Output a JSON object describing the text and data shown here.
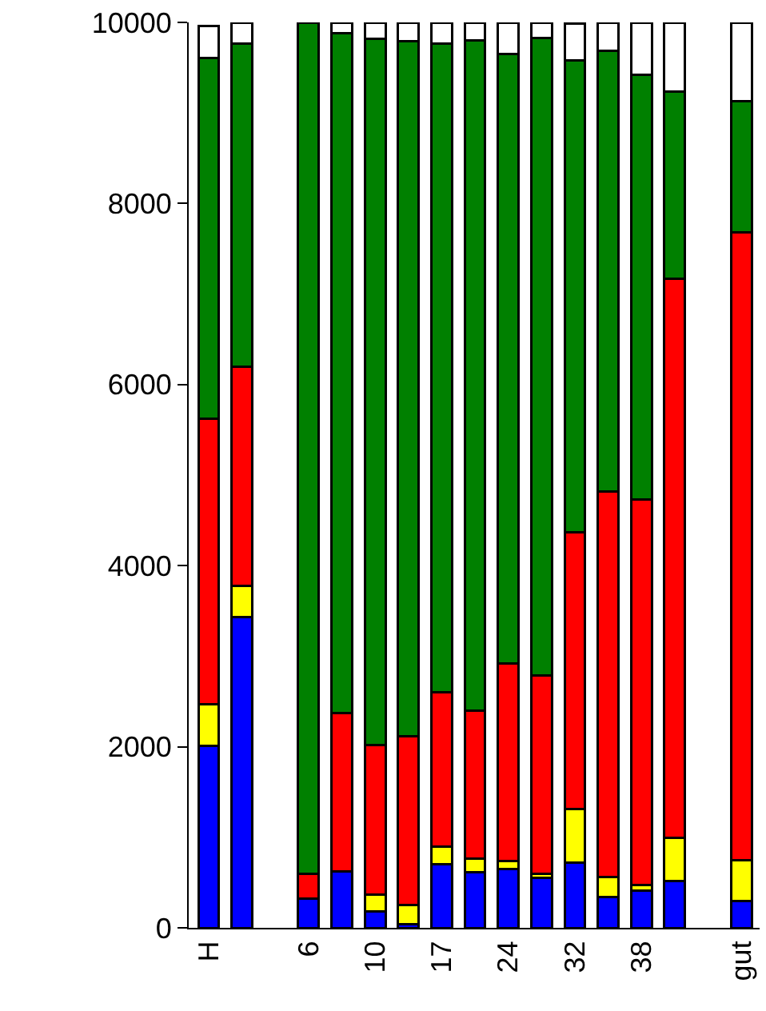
{
  "chart_data": {
    "type": "bar",
    "stacked": true,
    "categories": [
      "H",
      null,
      null,
      "6",
      null,
      "10",
      null,
      "17",
      null,
      "24",
      null,
      "32",
      null,
      "38",
      null,
      null,
      "gut"
    ],
    "series": [
      {
        "color": "#0000ff",
        "values": [
          2010,
          3430,
          null,
          320,
          620,
          180,
          40,
          700,
          610,
          650,
          550,
          720,
          340,
          410,
          520,
          null,
          300
        ]
      },
      {
        "color": "#ffff00",
        "values": [
          460,
          350,
          null,
          null,
          null,
          190,
          210,
          200,
          150,
          90,
          50,
          590,
          220,
          60,
          470,
          null,
          450
        ]
      },
      {
        "color": "#ff0000",
        "values": [
          3150,
          2420,
          null,
          280,
          1750,
          1650,
          1870,
          1700,
          1640,
          2180,
          2190,
          3060,
          4260,
          4260,
          6180,
          null,
          6930
        ]
      },
      {
        "color": "#008000",
        "values": [
          3990,
          3570,
          null,
          9400,
          7510,
          7800,
          7670,
          7170,
          7400,
          6730,
          7040,
          5210,
          4870,
          4690,
          2070,
          null,
          1450
        ]
      },
      {
        "color": "#ffffff",
        "values": [
          350,
          230,
          null,
          null,
          120,
          180,
          210,
          230,
          200,
          350,
          170,
          410,
          310,
          580,
          760,
          null,
          870
        ]
      }
    ],
    "ylim": [
      0,
      10000
    ],
    "yticks": [
      0,
      2000,
      4000,
      6000,
      8000,
      10000
    ]
  }
}
